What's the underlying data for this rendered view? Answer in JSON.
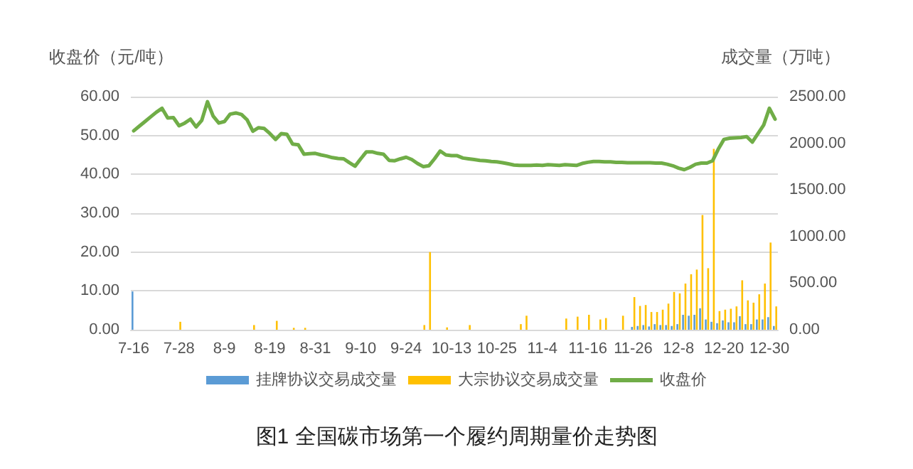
{
  "chart_data": {
    "type": "bar",
    "title": "图1 全国碳市场第一个履约周期量价走势图",
    "ylabel": "收盘价（元/吨）",
    "y2label": "成交量（万吨）",
    "categories": [
      "7-16",
      null,
      null,
      null,
      null,
      null,
      null,
      null,
      "7-28",
      null,
      null,
      null,
      null,
      null,
      null,
      null,
      "8-9",
      null,
      null,
      null,
      null,
      null,
      null,
      null,
      "8-19",
      null,
      null,
      null,
      null,
      null,
      null,
      null,
      "8-31",
      null,
      null,
      null,
      null,
      null,
      null,
      null,
      "9-10",
      null,
      null,
      null,
      null,
      null,
      null,
      null,
      "9-24",
      null,
      null,
      null,
      null,
      null,
      null,
      null,
      "10-13",
      null,
      null,
      null,
      null,
      null,
      null,
      null,
      "10-25",
      null,
      null,
      null,
      null,
      null,
      null,
      null,
      "11-4",
      null,
      null,
      null,
      null,
      null,
      null,
      null,
      "11-16",
      null,
      null,
      null,
      null,
      null,
      null,
      null,
      "11-26",
      null,
      null,
      null,
      null,
      null,
      null,
      null,
      "12-8",
      null,
      null,
      null,
      null,
      null,
      null,
      null,
      "12-20",
      null,
      null,
      null,
      null,
      null,
      null,
      null,
      "12-30",
      null
    ],
    "series": [
      {
        "name": "挂牌协议交易成交量",
        "axis": "y2",
        "color": "#5b9bd5",
        "values": [
          410,
          0,
          0,
          0,
          0,
          0,
          0,
          0,
          0,
          0,
          0,
          0,
          0,
          0,
          0,
          0,
          0,
          0,
          0,
          0,
          0,
          0,
          0,
          0,
          0,
          0,
          0,
          0,
          0,
          0,
          0,
          0,
          0,
          0,
          0,
          0,
          0,
          0,
          0,
          0,
          0,
          0,
          0,
          0,
          0,
          0,
          0,
          0,
          0,
          0,
          0,
          0,
          0,
          0,
          0,
          0,
          0,
          0,
          0,
          0,
          0,
          0,
          0,
          0,
          0,
          0,
          0,
          0,
          0,
          0,
          0,
          0,
          0,
          0,
          0,
          0,
          0,
          0,
          0,
          0,
          0,
          0,
          0,
          0,
          0,
          0,
          0,
          0,
          30,
          40,
          50,
          35,
          60,
          50,
          50,
          40,
          60,
          160,
          150,
          160,
          230,
          110,
          85,
          70,
          100,
          80,
          80,
          145,
          60,
          60,
          110,
          110,
          135,
          40
        ]
      },
      {
        "name": "大宗协议交易成交量",
        "axis": "y2",
        "color": "#ffc000",
        "values": [
          0,
          0,
          0,
          0,
          0,
          0,
          0,
          0,
          85,
          0,
          0,
          0,
          0,
          0,
          0,
          0,
          0,
          0,
          0,
          0,
          0,
          50,
          0,
          0,
          0,
          95,
          0,
          0,
          20,
          0,
          20,
          0,
          0,
          0,
          0,
          0,
          0,
          0,
          0,
          0,
          0,
          0,
          0,
          0,
          0,
          0,
          0,
          0,
          0,
          0,
          0,
          50,
          833,
          0,
          0,
          25,
          0,
          0,
          0,
          50,
          0,
          0,
          0,
          0,
          0,
          0,
          null,
          0,
          60,
          150,
          0,
          0,
          0,
          0,
          0,
          0,
          120,
          0,
          140,
          0,
          160,
          0,
          110,
          125,
          0,
          0,
          150,
          0,
          350,
          255,
          265,
          190,
          190,
          215,
          280,
          405,
          390,
          495,
          595,
          645,
          1230,
          660,
          1940,
          200,
          215,
          225,
          250,
          530,
          315,
          290,
          380,
          495,
          935,
          250
        ]
      },
      {
        "name": "收盘价",
        "type": "line",
        "color": "#70ad47",
        "values": [
          51.2,
          52.4,
          53.6,
          54.8,
          56,
          57,
          54.5,
          54.6,
          52.5,
          53.2,
          54.2,
          52.2,
          53.9,
          58.7,
          55,
          53.2,
          53.6,
          55.5,
          55.8,
          55.4,
          54,
          51.1,
          52,
          51.8,
          50.5,
          49,
          50.5,
          50.3,
          47.8,
          47.6,
          45.2,
          45.3,
          45.4,
          45,
          44.7,
          44.3,
          44.1,
          44,
          43,
          42.1,
          44,
          45.8,
          45.8,
          45.4,
          45.2,
          43.6,
          43.5,
          44,
          44.4,
          43.8,
          42.8,
          42,
          42.2,
          44,
          46,
          45,
          44.8,
          44.8,
          44.2,
          44,
          43.8,
          43.6,
          43.5,
          43.3,
          43.2,
          43,
          42.7,
          42.4,
          42.3,
          42.3,
          42.3,
          42.4,
          42.3,
          42.5,
          42.4,
          42.3,
          42.5,
          42.4,
          42.3,
          42.8,
          43.1,
          43.3,
          43.3,
          43.2,
          43.2,
          43.1,
          43.1,
          43,
          43,
          43,
          43,
          43,
          42.9,
          42.9,
          42.6,
          42.2,
          41.6,
          41.2,
          41.8,
          42.6,
          42.9,
          42.9,
          43.5,
          46.5,
          49,
          49.3,
          49.4,
          49.5,
          49.7,
          48.3,
          50.5,
          52.7,
          57,
          54.2
        ]
      }
    ],
    "ylim": [
      0,
      60
    ],
    "yticks": [
      {
        "value": 0,
        "label": "0.00"
      },
      {
        "value": 10,
        "label": "10.00"
      },
      {
        "value": 20,
        "label": "20.00"
      },
      {
        "value": 30,
        "label": "30.00"
      },
      {
        "value": 40,
        "label": "40.00"
      },
      {
        "value": 50,
        "label": "50.00"
      },
      {
        "value": 60,
        "label": "60.00"
      }
    ],
    "y2lim": [
      0,
      2500
    ],
    "y2ticks": [
      {
        "value": 0,
        "label": "0.00"
      },
      {
        "value": 500,
        "label": "500.00"
      },
      {
        "value": 1000,
        "label": "1000.00"
      },
      {
        "value": 1500,
        "label": "1500.00"
      },
      {
        "value": 2000,
        "label": "2000.00"
      },
      {
        "value": 2500,
        "label": "2500.00"
      }
    ],
    "grid": "y",
    "legend": "bottom",
    "marker": "none",
    "line_style": "solid"
  }
}
